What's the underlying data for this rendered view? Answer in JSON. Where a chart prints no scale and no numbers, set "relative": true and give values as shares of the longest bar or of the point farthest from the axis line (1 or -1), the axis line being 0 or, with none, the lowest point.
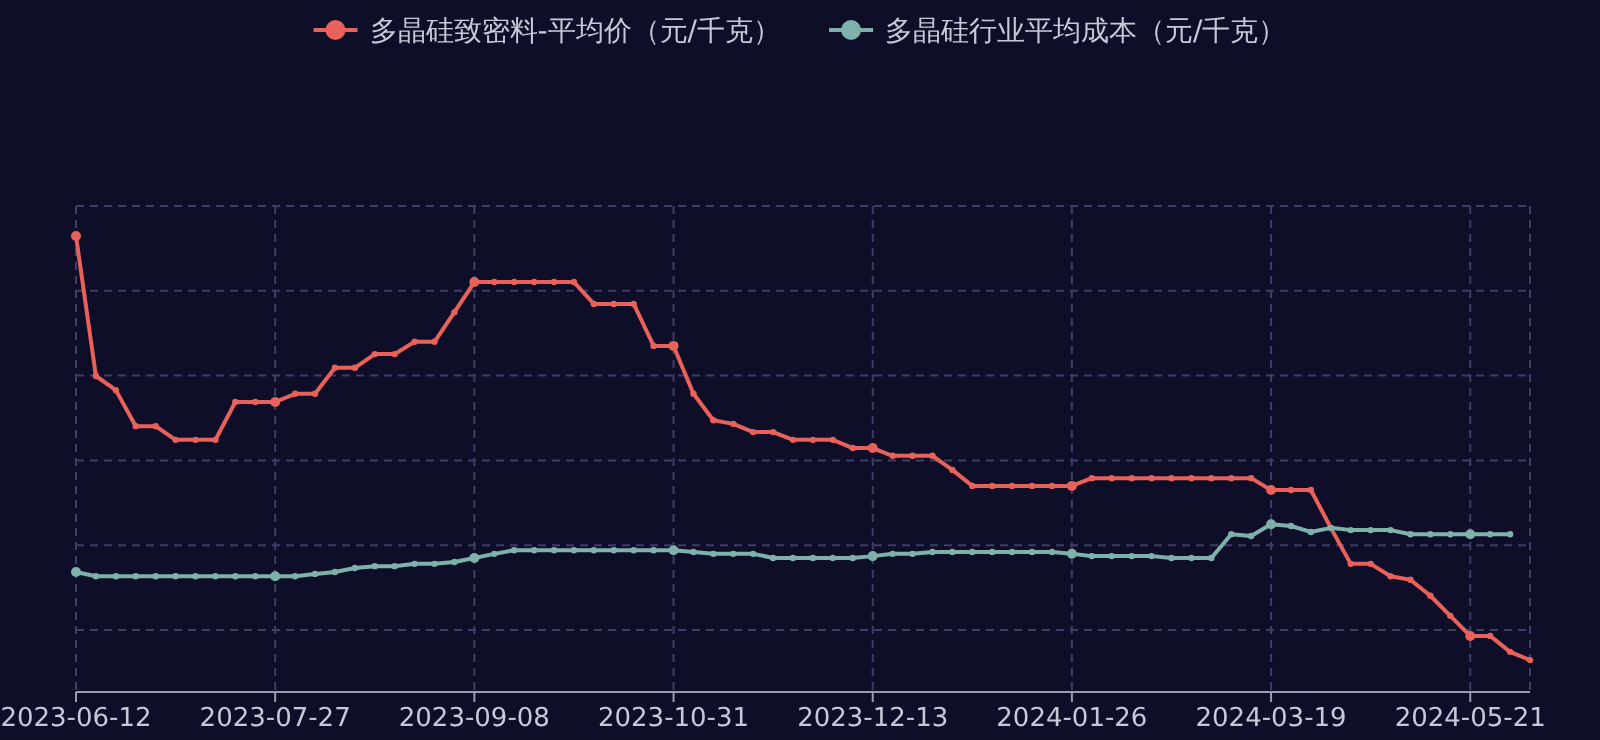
{
  "chart_data": {
    "type": "line",
    "relative": true,
    "grid": true,
    "legend": "top",
    "marker": "circle",
    "line_style": "solid",
    "categories": [
      "2023-06-12",
      null,
      null,
      null,
      null,
      null,
      null,
      null,
      null,
      null,
      "2023-07-27",
      null,
      null,
      null,
      null,
      null,
      null,
      null,
      null,
      null,
      "2023-09-08",
      null,
      null,
      null,
      null,
      null,
      null,
      null,
      null,
      null,
      "2023-10-31",
      null,
      null,
      null,
      null,
      null,
      null,
      null,
      null,
      null,
      "2023-12-13",
      null,
      null,
      null,
      null,
      null,
      null,
      null,
      null,
      null,
      "2024-01-26",
      null,
      null,
      null,
      null,
      null,
      null,
      null,
      null,
      null,
      "2024-03-19",
      null,
      null,
      null,
      null,
      null,
      null,
      null,
      null,
      null,
      "2024-05-21",
      null,
      null,
      null
    ],
    "series": [
      {
        "name": "多晶硅致密料-平均价（元/千克）",
        "color": "#e8615a",
        "values": [
          1.0,
          0.693,
          0.662,
          0.583,
          0.583,
          0.553,
          0.553,
          0.553,
          0.636,
          0.636,
          0.636,
          0.654,
          0.654,
          0.711,
          0.711,
          0.741,
          0.741,
          0.768,
          0.768,
          0.833,
          0.899,
          0.899,
          0.899,
          0.899,
          0.899,
          0.899,
          0.851,
          0.851,
          0.851,
          0.759,
          0.759,
          0.654,
          0.596,
          0.588,
          0.57,
          0.57,
          0.553,
          0.553,
          0.553,
          0.535,
          0.535,
          0.518,
          0.518,
          0.518,
          0.487,
          0.452,
          0.452,
          0.452,
          0.452,
          0.452,
          0.452,
          0.469,
          0.469,
          0.469,
          0.469,
          0.469,
          0.469,
          0.469,
          0.469,
          0.469,
          0.443,
          0.443,
          0.443,
          0.36,
          0.281,
          0.281,
          0.254,
          0.246,
          0.211,
          0.167,
          0.123,
          0.123,
          0.088,
          0.07
        ]
      },
      {
        "name": "多晶硅行业平均成本（元/千克）",
        "color": "#7fb1ab",
        "values": [
          0.263,
          0.254,
          0.254,
          0.254,
          0.254,
          0.254,
          0.254,
          0.254,
          0.254,
          0.254,
          0.254,
          0.254,
          0.259,
          0.263,
          0.272,
          0.276,
          0.276,
          0.281,
          0.281,
          0.285,
          0.294,
          0.303,
          0.311,
          0.311,
          0.311,
          0.311,
          0.311,
          0.311,
          0.311,
          0.311,
          0.311,
          0.307,
          0.303,
          0.303,
          0.303,
          0.294,
          0.294,
          0.294,
          0.294,
          0.294,
          0.298,
          0.303,
          0.303,
          0.307,
          0.307,
          0.307,
          0.307,
          0.307,
          0.307,
          0.307,
          0.303,
          0.298,
          0.298,
          0.298,
          0.298,
          0.294,
          0.294,
          0.294,
          0.346,
          0.342,
          0.368,
          0.364,
          0.351,
          0.36,
          0.355,
          0.355,
          0.355,
          0.346,
          0.346,
          0.346,
          0.346,
          0.346,
          0.346,
          null
        ]
      }
    ]
  }
}
